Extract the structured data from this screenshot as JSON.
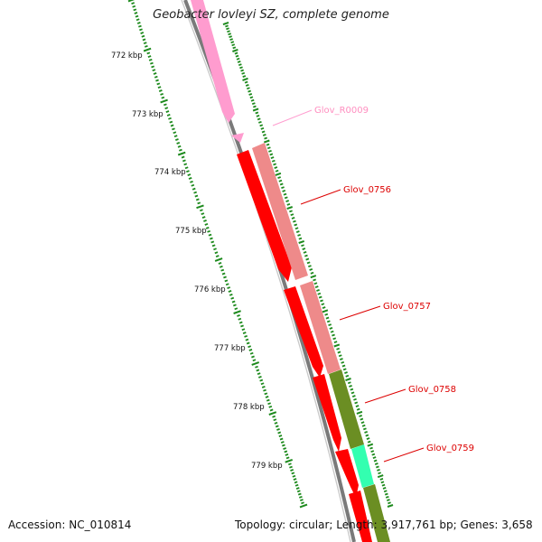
{
  "header": {
    "title": "Geobacter lovleyi SZ, complete genome"
  },
  "footer": {
    "accession": "Accession: NC_010814",
    "summary": "Topology: circular; Length: 3,917,761 bp; Genes: 3,658"
  },
  "colors": {
    "backbone": "#8a8a8a",
    "ruler_ticks": "#1d8a1d",
    "rrna_gene": "#ff9ccf",
    "protein_gene": "#ff0000",
    "protein_gene_outer": "#ee8a8a",
    "olive_gene": "#6b8e23",
    "green_gene": "#33ffb0"
  },
  "kbp_labels": [
    "772 kbp",
    "773 kbp",
    "774 kbp",
    "775 kbp",
    "776 kbp",
    "777 kbp",
    "778 kbp",
    "779 kbp"
  ],
  "gene_labels": [
    {
      "name": "Glov_R0009",
      "color": "#ff8fc0"
    },
    {
      "name": "Glov_0756",
      "color": "#dd0000"
    },
    {
      "name": "Glov_0757",
      "color": "#dd0000"
    },
    {
      "name": "Glov_0758",
      "color": "#dd0000"
    },
    {
      "name": "Glov_0759",
      "color": "#dd0000"
    }
  ]
}
